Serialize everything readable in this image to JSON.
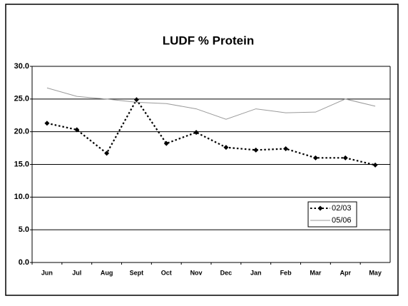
{
  "chart_data": {
    "type": "line",
    "title": "LUDF % Protein",
    "categories": [
      "Jun",
      "Jul",
      "Aug",
      "Sept",
      "Oct",
      "Nov",
      "Dec",
      "Jan",
      "Feb",
      "Mar",
      "Apr",
      "May"
    ],
    "series": [
      {
        "name": "02/03",
        "color": "#000000",
        "line_style": "dotted",
        "marker": "diamond",
        "values": [
          21.3,
          20.3,
          16.7,
          24.9,
          18.2,
          19.9,
          17.6,
          17.2,
          17.4,
          16.0,
          16.0,
          14.9
        ]
      },
      {
        "name": "05/06",
        "color": "#9a9a9a",
        "line_style": "solid",
        "marker": "none",
        "values": [
          26.7,
          25.4,
          25.0,
          24.5,
          24.3,
          23.5,
          21.9,
          23.5,
          22.9,
          23.0,
          25.0,
          23.9
        ]
      }
    ],
    "ylim": [
      0,
      30
    ],
    "yticks": [
      {
        "value": 0,
        "label": "0.0"
      },
      {
        "value": 5,
        "label": "5.0"
      },
      {
        "value": 10,
        "label": "10.0"
      },
      {
        "value": 15,
        "label": "15.0"
      },
      {
        "value": 20,
        "label": "20.0"
      },
      {
        "value": 25,
        "label": "25.0"
      },
      {
        "value": 30,
        "label": "30.0"
      }
    ],
    "grid": true,
    "legend": "lower right"
  }
}
